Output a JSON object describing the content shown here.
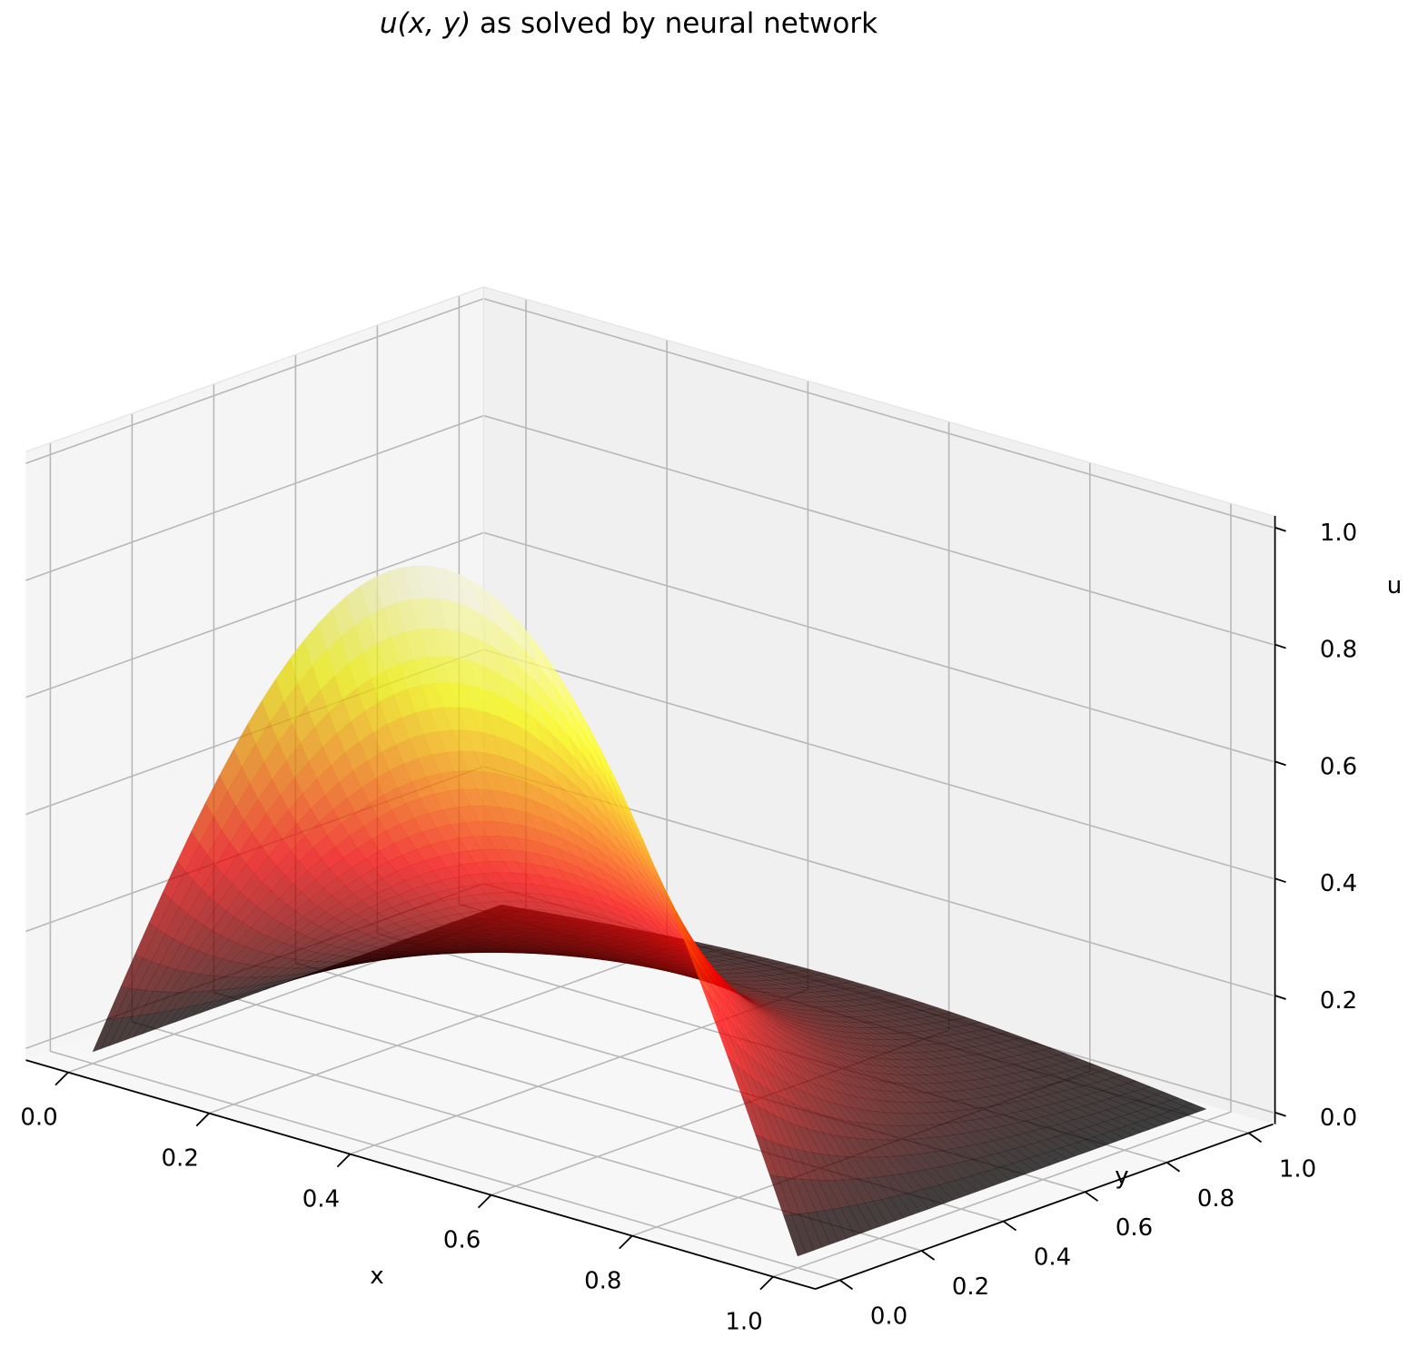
{
  "chart_data": {
    "type": "surface3d",
    "title_prefix": "u(x, y)",
    "title_suffix": " as solved by neural network",
    "xlabel": "x",
    "ylabel": "y",
    "zlabel": "u",
    "xlim": [
      0.0,
      1.0
    ],
    "ylim": [
      0.0,
      1.0
    ],
    "zlim": [
      0.0,
      1.0
    ],
    "x_ticks": [
      "0.0",
      "0.2",
      "0.4",
      "0.6",
      "0.8",
      "1.0"
    ],
    "y_ticks": [
      "0.0",
      "0.2",
      "0.4",
      "0.6",
      "0.8",
      "1.0"
    ],
    "z_ticks": [
      "0.0",
      "0.2",
      "0.4",
      "0.6",
      "0.8",
      "1.0"
    ],
    "function": "u(x,y) = exp(-pi*y) * sin(pi*x)",
    "peak": {
      "x": 0.5,
      "y": 0.0,
      "u": 1.0
    },
    "colormap": "hot",
    "surface_alpha": 0.75,
    "grid": true,
    "pane_colors": {
      "left": "#f5f5f5",
      "back": "#f0f0f0",
      "floor": "#f7f7f7"
    },
    "grid_color": "#b8b8b8"
  }
}
